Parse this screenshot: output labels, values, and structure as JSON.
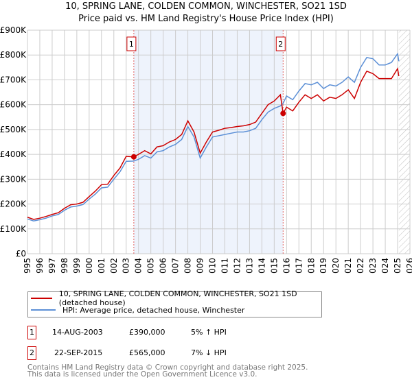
{
  "chart_data": {
    "type": "line",
    "title": "10, SPRING LANE, COLDEN COMMON, WINCHESTER, SO21 1SD",
    "subtitle": "Price paid vs. HM Land Registry's House Price Index (HPI)",
    "xlim": [
      1995,
      2026
    ],
    "ylim": [
      0,
      900000
    ],
    "y_ticks": [
      {
        "v": 0,
        "label": "£0"
      },
      {
        "v": 100000,
        "label": "£100K"
      },
      {
        "v": 200000,
        "label": "£200K"
      },
      {
        "v": 300000,
        "label": "£300K"
      },
      {
        "v": 400000,
        "label": "£400K"
      },
      {
        "v": 500000,
        "label": "£500K"
      },
      {
        "v": 600000,
        "label": "£600K"
      },
      {
        "v": 700000,
        "label": "£700K"
      },
      {
        "v": 800000,
        "label": "£800K"
      },
      {
        "v": 900000,
        "label": "£900K"
      }
    ],
    "x_ticks": [
      "1995",
      "1996",
      "1997",
      "1998",
      "1999",
      "2000",
      "2001",
      "2002",
      "2003",
      "2004",
      "2005",
      "2006",
      "2007",
      "2008",
      "2009",
      "2010",
      "2011",
      "2012",
      "2013",
      "2014",
      "2015",
      "2016",
      "2017",
      "2018",
      "2019",
      "2020",
      "2021",
      "2022",
      "2023",
      "2024",
      "2025",
      "2026"
    ],
    "grid": true,
    "shaded_region": [
      2003.62,
      2015.72
    ],
    "hatched_from": 2025.1,
    "x": [
      1995,
      1995.5,
      1996,
      1996.5,
      1997,
      1997.5,
      1998,
      1998.5,
      1999,
      1999.5,
      2000,
      2000.5,
      2001,
      2001.5,
      2002,
      2002.5,
      2003,
      2003.62,
      2004,
      2004.5,
      2005,
      2005.5,
      2006,
      2006.5,
      2007,
      2007.5,
      2008,
      2008.5,
      2009,
      2009.5,
      2010,
      2010.5,
      2011,
      2011.5,
      2012,
      2012.5,
      2013,
      2013.5,
      2014,
      2014.5,
      2015,
      2015.5,
      2015.72,
      2016,
      2016.5,
      2017,
      2017.5,
      2018,
      2018.5,
      2019,
      2019.5,
      2020,
      2020.5,
      2021,
      2021.5,
      2022,
      2022.5,
      2023,
      2023.5,
      2024,
      2024.5,
      2025,
      2025.1
    ],
    "series": [
      {
        "name": "10, SPRING LANE, COLDEN COMMON, WINCHESTER, SO21 1SD (detached house)",
        "color": "#cc0000",
        "values": [
          147000,
          138000,
          143000,
          150000,
          158000,
          165000,
          183000,
          197000,
          200000,
          207000,
          230000,
          252000,
          278000,
          280000,
          315000,
          345000,
          392000,
          390000,
          400000,
          415000,
          402000,
          430000,
          435000,
          450000,
          460000,
          480000,
          535000,
          490000,
          405000,
          450000,
          490000,
          497000,
          505000,
          508000,
          512000,
          515000,
          520000,
          530000,
          565000,
          600000,
          615000,
          640000,
          565000,
          590000,
          575000,
          610000,
          640000,
          625000,
          640000,
          615000,
          630000,
          625000,
          640000,
          660000,
          625000,
          690000,
          735000,
          725000,
          705000,
          705000,
          705000,
          745000,
          715000
        ]
      },
      {
        "name": "HPI: Average price, detached house, Winchester",
        "color": "#5b8fd6",
        "values": [
          140000,
          132000,
          137000,
          143000,
          152000,
          158000,
          175000,
          188000,
          192000,
          198000,
          220000,
          240000,
          265000,
          268000,
          300000,
          330000,
          372000,
          373000,
          380000,
          395000,
          385000,
          410000,
          415000,
          430000,
          440000,
          460000,
          512000,
          470000,
          385000,
          430000,
          470000,
          475000,
          480000,
          485000,
          490000,
          490000,
          495000,
          505000,
          540000,
          570000,
          585000,
          595000,
          605000,
          635000,
          620000,
          655000,
          685000,
          680000,
          690000,
          665000,
          680000,
          675000,
          690000,
          712000,
          690000,
          750000,
          790000,
          785000,
          760000,
          760000,
          770000,
          805000,
          775000
        ]
      }
    ],
    "sales": [
      {
        "n": "1",
        "x": 2003.62,
        "value": 390000
      },
      {
        "n": "2",
        "x": 2015.72,
        "value": 565000
      }
    ]
  },
  "legend": {
    "red": "10, SPRING LANE, COLDEN COMMON, WINCHESTER, SO21 1SD (detached house)",
    "blue": "HPI: Average price, detached house, Winchester"
  },
  "transactions": [
    {
      "n": "1",
      "date": "14-AUG-2003",
      "price": "£390,000",
      "hpi": "5% ↑ HPI"
    },
    {
      "n": "2",
      "date": "22-SEP-2015",
      "price": "£565,000",
      "hpi": "7% ↓ HPI"
    }
  ],
  "footer": [
    "Contains HM Land Registry data © Crown copyright and database right 2025.",
    "This data is licensed under the Open Government Licence v3.0."
  ]
}
